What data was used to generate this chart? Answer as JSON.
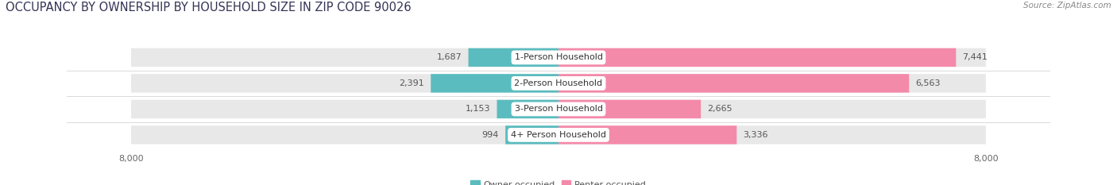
{
  "title": "OCCUPANCY BY OWNERSHIP BY HOUSEHOLD SIZE IN ZIP CODE 90026",
  "source": "Source: ZipAtlas.com",
  "categories": [
    "1-Person Household",
    "2-Person Household",
    "3-Person Household",
    "4+ Person Household"
  ],
  "owner_values": [
    1687,
    2391,
    1153,
    994
  ],
  "renter_values": [
    7441,
    6563,
    2665,
    3336
  ],
  "owner_color": "#5bbcbf",
  "renter_color": "#f48aaa",
  "bar_bg_color": "#e8e8e8",
  "axis_max": 8000,
  "bar_height": 0.72,
  "background_color": "#ffffff",
  "title_fontsize": 10.5,
  "source_fontsize": 7.5,
  "label_fontsize": 8,
  "tick_fontsize": 8,
  "legend_fontsize": 8,
  "title_color": "#333355",
  "source_color": "#888888",
  "value_color": "#555555",
  "cat_label_color": "#333333"
}
